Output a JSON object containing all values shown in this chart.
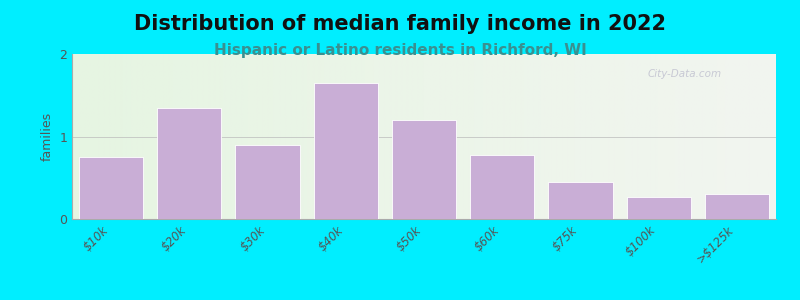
{
  "title": "Distribution of median family income in 2022",
  "subtitle": "Hispanic or Latino residents in Richford, WI",
  "categories": [
    "$10k",
    "$20k",
    "$30k",
    "$40k",
    "$50k",
    "$60k",
    "$75k",
    "$100k",
    ">$125k"
  ],
  "values": [
    0.75,
    1.35,
    0.9,
    1.65,
    1.2,
    0.78,
    0.45,
    0.27,
    0.3
  ],
  "bar_color": "#c9aed6",
  "bar_edge_color": "#ffffff",
  "background_outer": "#00eeff",
  "background_inner_left": "#e6f5e2",
  "background_inner_right": "#f2f5f0",
  "ylabel": "families",
  "ylim": [
    0,
    2
  ],
  "yticks": [
    0,
    1,
    2
  ],
  "title_fontsize": 15,
  "subtitle_fontsize": 11,
  "subtitle_color": "#3a9090",
  "watermark": "City-Data.com",
  "tick_label_color": "#555555",
  "spine_color": "#aaaaaa"
}
